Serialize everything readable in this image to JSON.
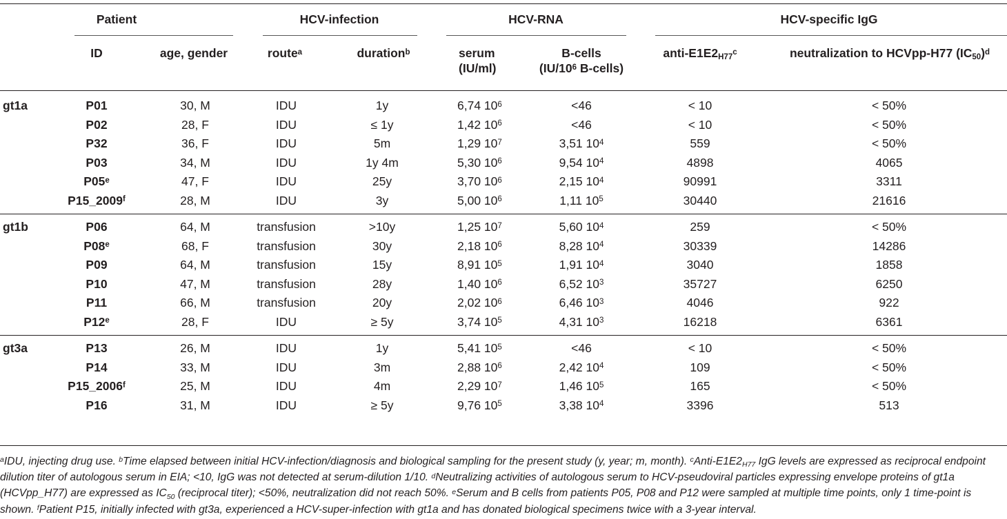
{
  "header": {
    "group_patient": "Patient",
    "group_infection": "HCV-infection",
    "group_rna": "HCV-RNA",
    "group_igg": "HCV-specific IgG",
    "col_id": "ID",
    "col_age": "age, gender",
    "col_route": "route",
    "col_route_sup": "a",
    "col_duration": "duration",
    "col_duration_sup": "b",
    "col_serum_l1": "serum",
    "col_serum_l2": "(IU/ml)",
    "col_bcells_l1": "B-cells",
    "col_bcells_l2a": "(IU/10",
    "col_bcells_l2sup": "6",
    "col_bcells_l2b": " B-cells)",
    "col_anti_a": "anti-E1E2",
    "col_anti_sub": "H77",
    "col_anti_sup": "c",
    "col_neut_a": "neutralization to HCVpp-H77 (IC",
    "col_neut_sub": "50",
    "col_neut_b": ")",
    "col_neut_sup": "d"
  },
  "groups": [
    {
      "genotype": "gt1a",
      "rows": [
        {
          "id": "P01",
          "id_sup": "",
          "age": "30, M",
          "route": "IDU",
          "duration": "1y",
          "serum_m": "6,74 10",
          "serum_e": "6",
          "bcells_m": "<46",
          "bcells_e": "",
          "anti": "< 10",
          "neut": "< 50%"
        },
        {
          "id": "P02",
          "id_sup": "",
          "age": "28, F",
          "route": "IDU",
          "duration": "≤ 1y",
          "serum_m": "1,42 10",
          "serum_e": "6",
          "bcells_m": "<46",
          "bcells_e": "",
          "anti": "< 10",
          "neut": "< 50%"
        },
        {
          "id": "P32",
          "id_sup": "",
          "age": "36, F",
          "route": "IDU",
          "duration": "5m",
          "serum_m": "1,29 10",
          "serum_e": "7",
          "bcells_m": "3,51 10",
          "bcells_e": "4",
          "anti": "559",
          "neut": "< 50%"
        },
        {
          "id": "P03",
          "id_sup": "",
          "age": "34, M",
          "route": "IDU",
          "duration": "1y 4m",
          "serum_m": "5,30 10",
          "serum_e": "6",
          "bcells_m": "9,54 10",
          "bcells_e": "4",
          "anti": "4898",
          "neut": "4065"
        },
        {
          "id": "P05",
          "id_sup": "e",
          "age": "47, F",
          "route": "IDU",
          "duration": "25y",
          "serum_m": "3,70 10",
          "serum_e": "6",
          "bcells_m": "2,15 10",
          "bcells_e": "4",
          "anti": "90991",
          "neut": "3311"
        },
        {
          "id": "P15_2009",
          "id_sup": "f",
          "age": "28, M",
          "route": "IDU",
          "duration": "3y",
          "serum_m": "5,00 10",
          "serum_e": "6",
          "bcells_m": "1,11 10",
          "bcells_e": "5",
          "anti": "30440",
          "neut": "21616"
        }
      ]
    },
    {
      "genotype": "gt1b",
      "rows": [
        {
          "id": "P06",
          "id_sup": "",
          "age": "64, M",
          "route": "transfusion",
          "duration": ">10y",
          "serum_m": "1,25 10",
          "serum_e": "7",
          "bcells_m": "5,60 10",
          "bcells_e": "4",
          "anti": "259",
          "neut": "< 50%"
        },
        {
          "id": "P08",
          "id_sup": "e",
          "age": "68, F",
          "route": "transfusion",
          "duration": "30y",
          "serum_m": "2,18 10",
          "serum_e": "6",
          "bcells_m": "8,28 10",
          "bcells_e": "4",
          "anti": "30339",
          "neut": "14286"
        },
        {
          "id": "P09",
          "id_sup": "",
          "age": "64, M",
          "route": "transfusion",
          "duration": "15y",
          "serum_m": "8,91 10",
          "serum_e": "5",
          "bcells_m": "1,91 10",
          "bcells_e": "4",
          "anti": "3040",
          "neut": "1858"
        },
        {
          "id": "P10",
          "id_sup": "",
          "age": "47, M",
          "route": "transfusion",
          "duration": "28y",
          "serum_m": "1,40 10",
          "serum_e": "6",
          "bcells_m": "6,52 10",
          "bcells_e": "3",
          "anti": "35727",
          "neut": "6250"
        },
        {
          "id": "P11",
          "id_sup": "",
          "age": "66, M",
          "route": "transfusion",
          "duration": "20y",
          "serum_m": "2,02 10",
          "serum_e": "6",
          "bcells_m": "6,46 10",
          "bcells_e": "3",
          "anti": "4046",
          "neut": "922"
        },
        {
          "id": "P12",
          "id_sup": "e",
          "age": "28, F",
          "route": "IDU",
          "duration": "≥ 5y",
          "serum_m": "3,74 10",
          "serum_e": "5",
          "bcells_m": "4,31 10",
          "bcells_e": "3",
          "anti": "16218",
          "neut": "6361"
        }
      ]
    },
    {
      "genotype": "gt3a",
      "rows": [
        {
          "id": "P13",
          "id_sup": "",
          "age": "26, M",
          "route": "IDU",
          "duration": "1y",
          "serum_m": "5,41 10",
          "serum_e": "5",
          "bcells_m": "<46",
          "bcells_e": "",
          "anti": "< 10",
          "neut": "< 50%"
        },
        {
          "id": "P14",
          "id_sup": "",
          "age": "33, M",
          "route": "IDU",
          "duration": "3m",
          "serum_m": "2,88 10",
          "serum_e": "6",
          "bcells_m": "2,42 10",
          "bcells_e": "4",
          "anti": "109",
          "neut": "< 50%"
        },
        {
          "id": "P15_2006",
          "id_sup": "f",
          "age": "25, M",
          "route": "IDU",
          "duration": "4m",
          "serum_m": "2,29 10",
          "serum_e": "7",
          "bcells_m": "1,46 10",
          "bcells_e": "5",
          "anti": "165",
          "neut": "< 50%"
        },
        {
          "id": "P16",
          "id_sup": "",
          "age": "31, M",
          "route": "IDU",
          "duration": "≥ 5y",
          "serum_m": "9,76 10",
          "serum_e": "5",
          "bcells_m": "3,38 10",
          "bcells_e": "4",
          "anti": "3396",
          "neut": "513"
        }
      ]
    }
  ],
  "footnotes": {
    "a_mark": "a",
    "a_text": "IDU, injecting drug use. ",
    "b_mark": "b",
    "b_text": "Time elapsed between initial HCV-infection/diagnosis and biological sampling for the present study (y, year; m, month). ",
    "c_mark": "c",
    "c_text1": "Anti-E1E2",
    "c_sub": "H77",
    "c_text2": " IgG levels are expressed as reciprocal endpoint dilution titer of autologous serum in EIA; <10, IgG was not detected at serum-dilution 1/10. ",
    "d_mark": "d",
    "d_text1": "Neutralizing activities of autologous serum to HCV-pseudoviral particles expressing envelope proteins of gt1a (HCVpp_H77) are expressed as IC",
    "d_sub": "50",
    "d_text2": " (reciprocal titer); <50%, neutralization did not reach 50%. ",
    "e_mark": "e",
    "e_text": "Serum and B cells from patients P05, P08 and P12 were sampled at multiple time points, only 1 time-point is shown. ",
    "f_mark": "f",
    "f_text": "Patient P15, initially infected with gt3a, experienced a HCV-super-infection with gt1a and has donated biological specimens twice with a 3-year interval."
  }
}
